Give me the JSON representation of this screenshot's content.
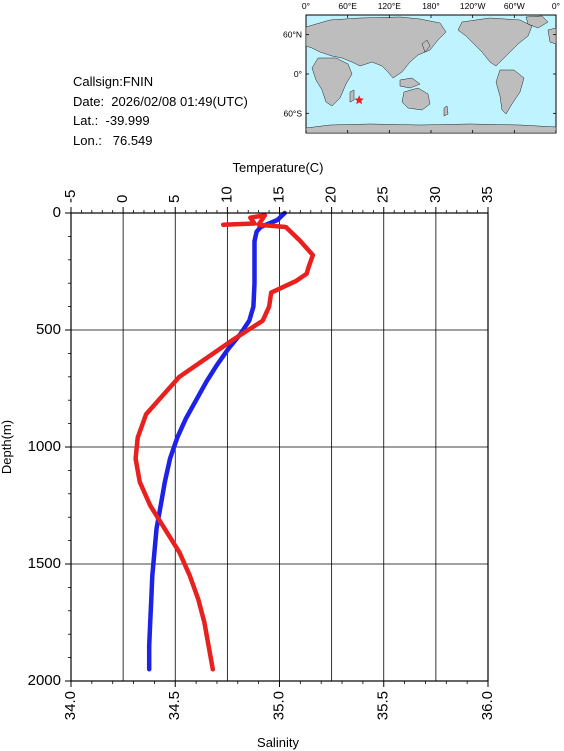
{
  "info": {
    "callsign": "Callsign:FNIN",
    "date": "Date:  2026/02/08 01:49(UTC)",
    "lat": "Lat.:  -39.999",
    "lon": "Lon.:   76.549"
  },
  "map": {
    "lon_labels": [
      "0°",
      "60°E",
      "120°E",
      "180°",
      "120°W",
      "60°W",
      "0°"
    ],
    "lat_labels": [
      "60°N",
      "0°",
      "60°S"
    ],
    "ocean_color": "#bff3ff",
    "land_color": "#bdbdbd",
    "marker": {
      "symbol": "star",
      "lat": -39.999,
      "lon": 76.549,
      "color": "#e8201e"
    }
  },
  "chart_data": {
    "type": "line",
    "x_top_label": "Temperature(C)",
    "x_bottom_label": "Salinity",
    "ylabel": "Depth(m)",
    "temperature_ticks": [
      "-5",
      "0",
      "5",
      "10",
      "15",
      "20",
      "25",
      "30",
      "35"
    ],
    "salinity_ticks": [
      "34.0",
      "34.5",
      "35.0",
      "35.5",
      "36.0"
    ],
    "depth_ticks": [
      "0",
      "500",
      "1000",
      "1500",
      "2000"
    ],
    "temperature_range": [
      -5,
      35
    ],
    "salinity_range": [
      34.0,
      36.0
    ],
    "depth_range": [
      0,
      2000
    ],
    "grid": true,
    "series": [
      {
        "color": "#1e22e6",
        "axis": "temperature",
        "points": [
          [
            15.5,
            0
          ],
          [
            14.8,
            30
          ],
          [
            13.2,
            60
          ],
          [
            12.8,
            80
          ],
          [
            12.6,
            120
          ],
          [
            12.6,
            200
          ],
          [
            12.6,
            300
          ],
          [
            12.5,
            400
          ],
          [
            12.1,
            460
          ],
          [
            11.2,
            520
          ],
          [
            10.1,
            580
          ],
          [
            9.0,
            650
          ],
          [
            8.0,
            720
          ],
          [
            7.0,
            800
          ],
          [
            6.0,
            880
          ],
          [
            5.2,
            960
          ],
          [
            4.5,
            1050
          ],
          [
            4.0,
            1150
          ],
          [
            3.6,
            1250
          ],
          [
            3.2,
            1350
          ],
          [
            3.0,
            1450
          ],
          [
            2.8,
            1550
          ],
          [
            2.7,
            1650
          ],
          [
            2.6,
            1750
          ],
          [
            2.5,
            1850
          ],
          [
            2.5,
            1950
          ]
        ]
      },
      {
        "color": "#e8201e",
        "axis": "salinity",
        "points": [
          [
            34.73,
            50
          ],
          [
            34.88,
            45
          ],
          [
            34.86,
            20
          ],
          [
            34.93,
            10
          ],
          [
            34.9,
            50
          ],
          [
            35.03,
            60
          ],
          [
            35.1,
            120
          ],
          [
            35.13,
            150
          ],
          [
            35.16,
            180
          ],
          [
            35.14,
            230
          ],
          [
            35.13,
            260
          ],
          [
            35.08,
            290
          ],
          [
            34.96,
            340
          ],
          [
            34.95,
            400
          ],
          [
            34.92,
            460
          ],
          [
            34.78,
            540
          ],
          [
            34.65,
            620
          ],
          [
            34.52,
            700
          ],
          [
            34.44,
            780
          ],
          [
            34.36,
            860
          ],
          [
            34.32,
            960
          ],
          [
            34.31,
            1050
          ],
          [
            34.33,
            1150
          ],
          [
            34.38,
            1250
          ],
          [
            34.45,
            1350
          ],
          [
            34.52,
            1450
          ],
          [
            34.57,
            1550
          ],
          [
            34.61,
            1650
          ],
          [
            34.64,
            1750
          ],
          [
            34.66,
            1850
          ],
          [
            34.68,
            1950
          ]
        ]
      }
    ]
  }
}
